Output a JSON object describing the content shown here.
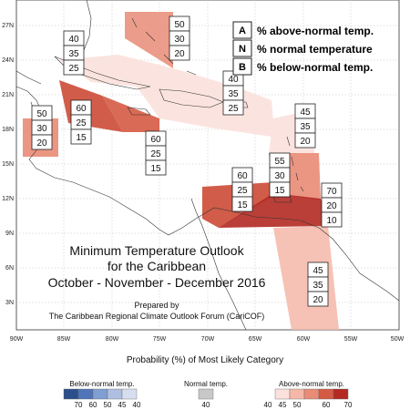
{
  "map": {
    "title_lines": [
      "Minimum Temperature Outlook",
      "for the Caribbean",
      "October - November - December 2016"
    ],
    "prepared_lines": [
      "Prepared by",
      "The Caribbean Regional Climate Outlook Forum (CariCOF)"
    ],
    "x_ticks": [
      "90W",
      "85W",
      "80W",
      "75W",
      "70W",
      "65W",
      "60W",
      "55W",
      "50W"
    ],
    "y_ticks": [
      "27N",
      "24N",
      "21N",
      "18N",
      "15N",
      "12N",
      "9N",
      "6N",
      "3N"
    ],
    "legend_key": [
      {
        "letter": "A",
        "text": "% above-normal temp."
      },
      {
        "letter": "N",
        "text": "% normal temperature"
      },
      {
        "letter": "B",
        "text": "% below-normal temp."
      }
    ],
    "probability_boxes": [
      {
        "values": [
          "50",
          "30",
          "20"
        ]
      },
      {
        "values": [
          "40",
          "35",
          "25"
        ]
      },
      {
        "values": [
          "40",
          "35",
          "25"
        ]
      },
      {
        "values": [
          "50",
          "30",
          "20"
        ]
      },
      {
        "values": [
          "60",
          "25",
          "15"
        ]
      },
      {
        "values": [
          "60",
          "25",
          "15"
        ]
      },
      {
        "values": [
          "45",
          "35",
          "20"
        ]
      },
      {
        "values": [
          "55",
          "30",
          "15"
        ]
      },
      {
        "values": [
          "60",
          "25",
          "15"
        ]
      },
      {
        "values": [
          "70",
          "20",
          "10"
        ]
      },
      {
        "values": [
          "45",
          "35",
          "20"
        ]
      }
    ]
  },
  "colorbar": {
    "title": "Probability (%) of Most Likely Category",
    "below": {
      "label": "Below-normal temp.",
      "values": [
        "70",
        "60",
        "50",
        "45",
        "40"
      ],
      "colors": [
        "#2c4f8c",
        "#4f74b8",
        "#7f9ed1",
        "#aebfe2",
        "#d6deef"
      ]
    },
    "normal": {
      "label": "Normal temp.",
      "values": [
        "40"
      ],
      "colors": [
        "#c8c8c8"
      ]
    },
    "above": {
      "label": "Above-normal temp.",
      "values": [
        "40",
        "45",
        "50",
        "60",
        "70"
      ],
      "colors": [
        "#fbe1dc",
        "#f4b7a8",
        "#e98b75",
        "#d55a43",
        "#b32a22"
      ]
    }
  }
}
